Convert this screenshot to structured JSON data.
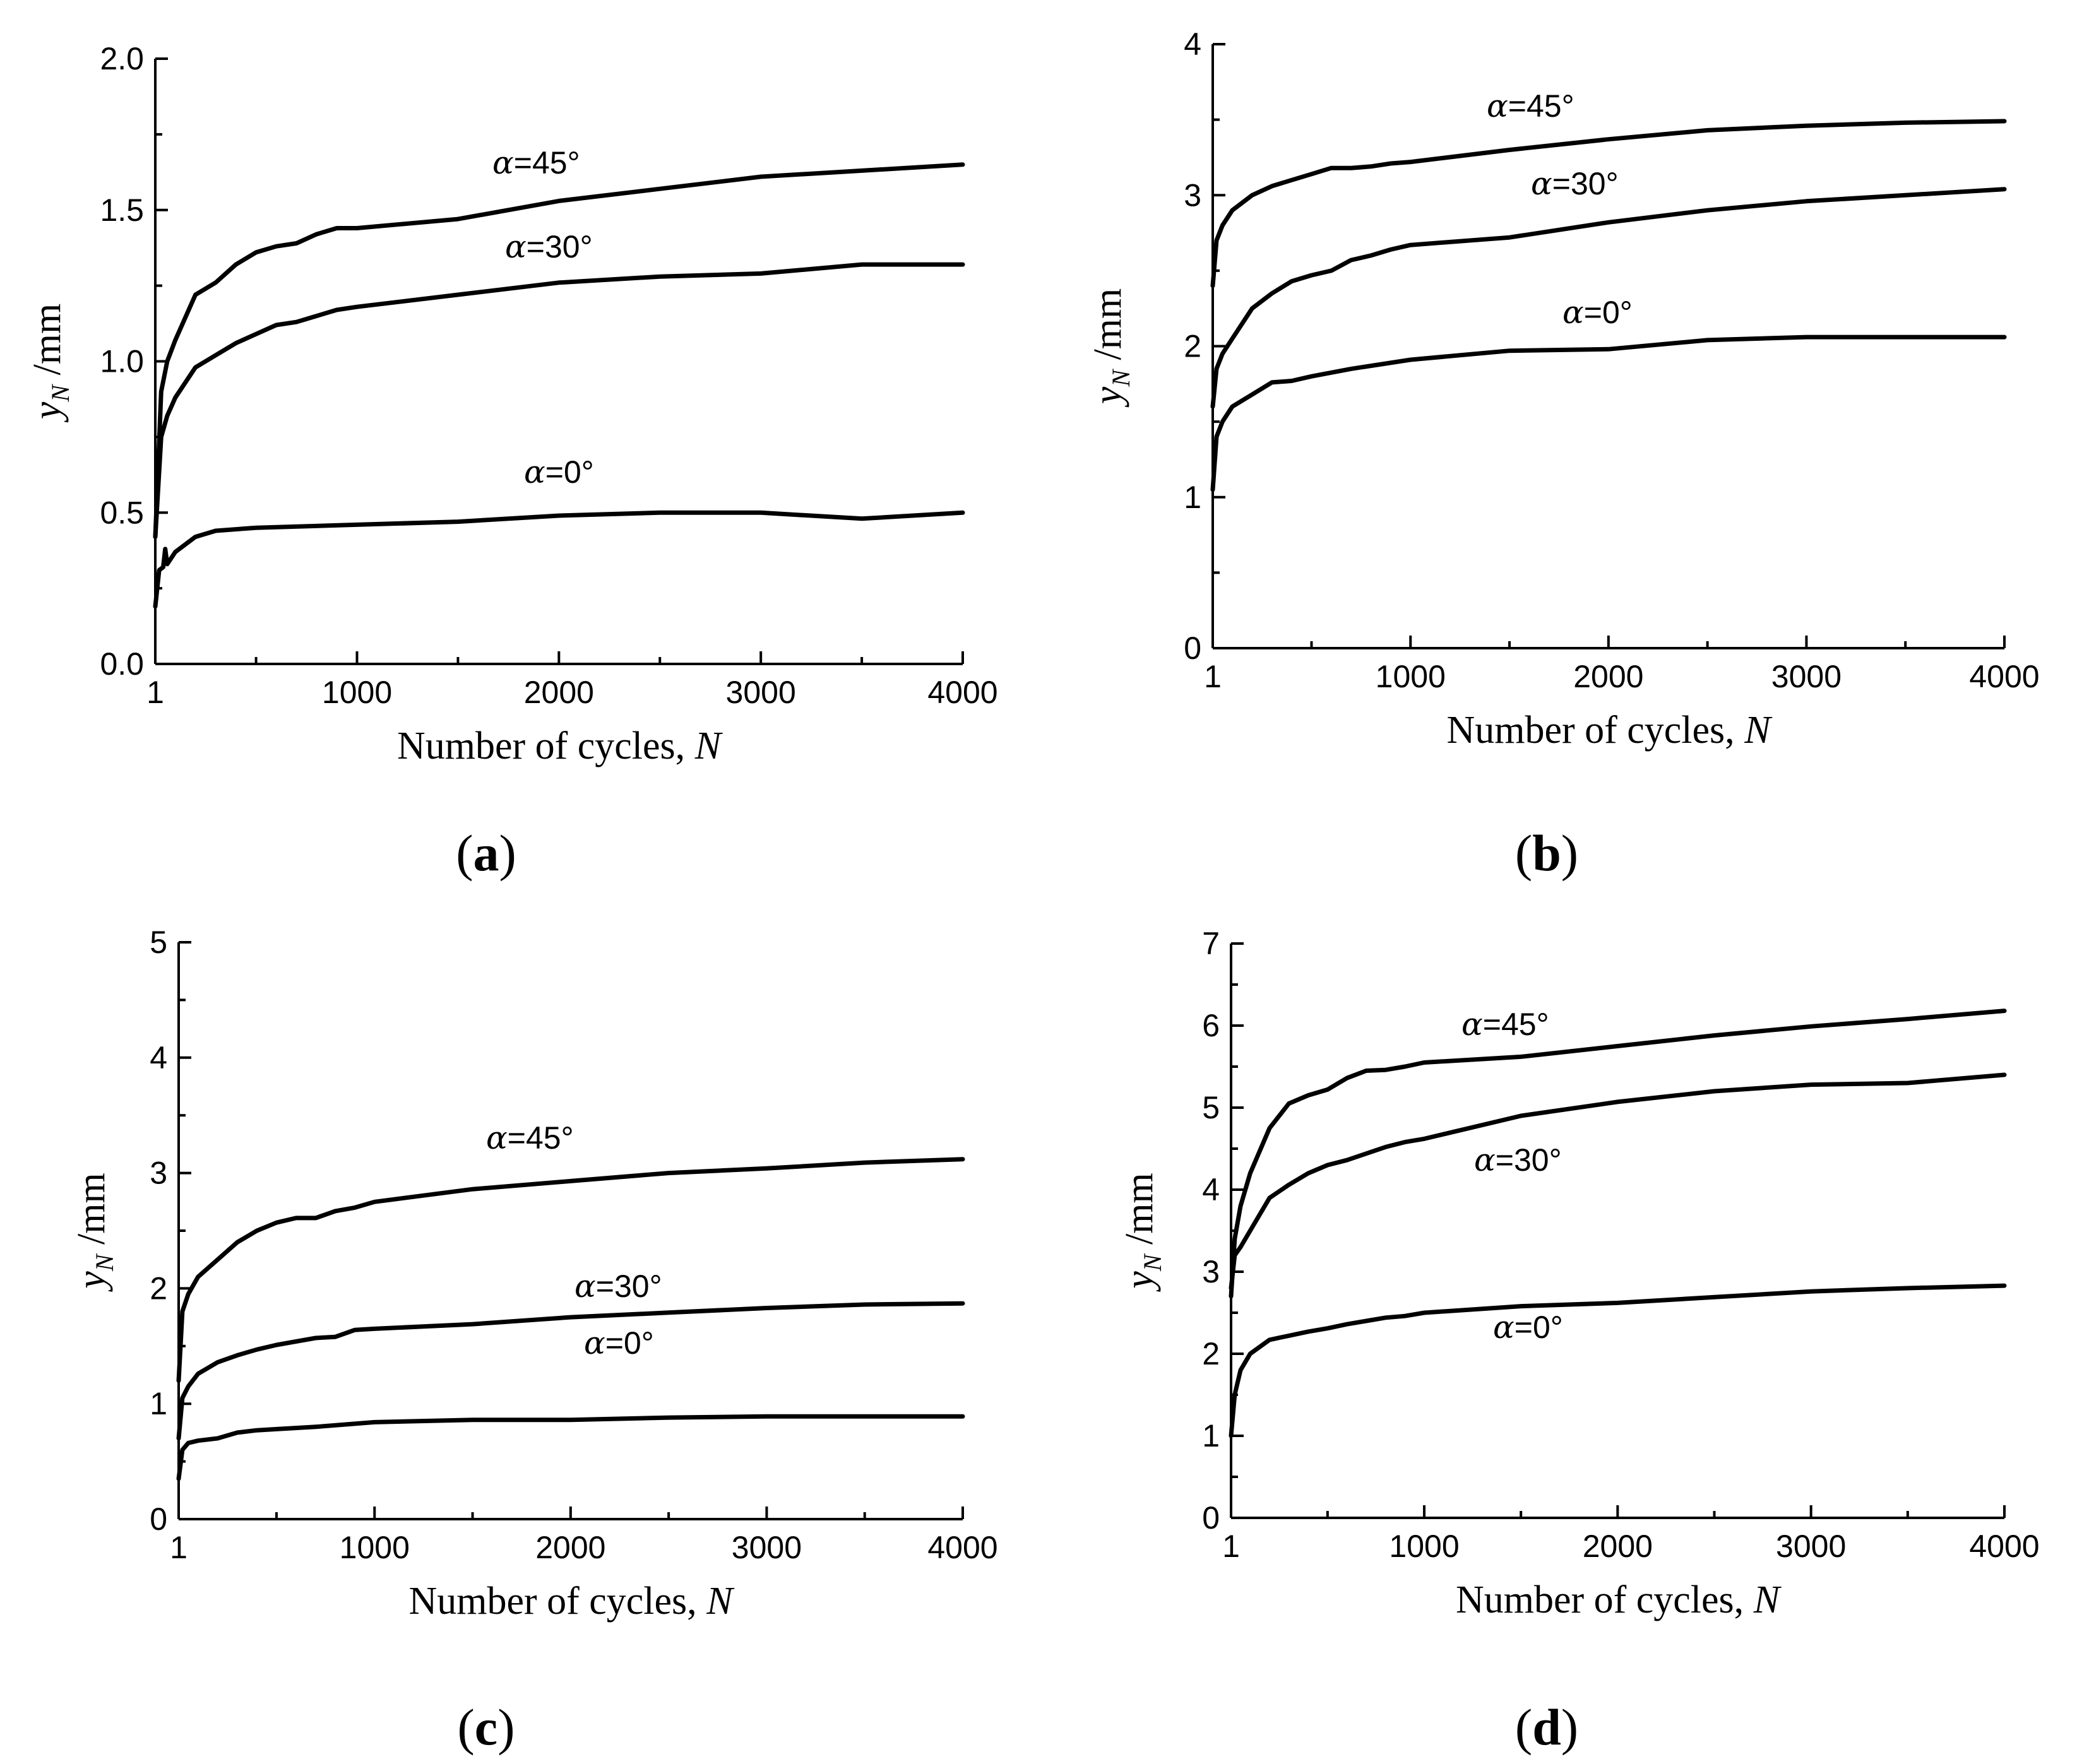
{
  "figure": {
    "background": "#ffffff",
    "line_color": "#000000"
  },
  "panels": [
    {
      "id": "a",
      "label": "a"
    },
    {
      "id": "b",
      "label": "b"
    },
    {
      "id": "c",
      "label": "c"
    },
    {
      "id": "d",
      "label": "d"
    }
  ],
  "chart_data": [
    {
      "type": "line",
      "panel": "a",
      "xlabel": "Number of cycles, N",
      "ylabel": "yN /mm",
      "xlim": [
        1,
        4000
      ],
      "ylim": [
        0,
        2.0
      ],
      "xticks": [
        1,
        1000,
        2000,
        3000,
        4000
      ],
      "xtick_labels": [
        "1",
        "1000",
        "2000",
        "3000",
        "4000"
      ],
      "yticks": [
        0,
        0.5,
        1.0,
        1.5,
        2.0
      ],
      "ytick_labels": [
        "0.0",
        "0.5",
        "1.0",
        "1.5",
        "2.0"
      ],
      "series": [
        {
          "name": "α=45°",
          "x": [
            1,
            30,
            60,
            100,
            200,
            300,
            400,
            500,
            600,
            700,
            800,
            900,
            1000,
            1500,
            2000,
            2500,
            3000,
            3500,
            4000
          ],
          "y": [
            0.42,
            0.9,
            1.0,
            1.07,
            1.22,
            1.26,
            1.32,
            1.36,
            1.38,
            1.39,
            1.42,
            1.44,
            1.44,
            1.47,
            1.53,
            1.57,
            1.61,
            1.63,
            1.65
          ]
        },
        {
          "name": "α=30°",
          "x": [
            1,
            30,
            60,
            100,
            200,
            300,
            400,
            500,
            600,
            700,
            800,
            900,
            1000,
            1500,
            2000,
            2500,
            3000,
            3500,
            4000
          ],
          "y": [
            0.42,
            0.75,
            0.82,
            0.88,
            0.98,
            1.02,
            1.06,
            1.09,
            1.12,
            1.13,
            1.15,
            1.17,
            1.18,
            1.22,
            1.26,
            1.28,
            1.29,
            1.32,
            1.32
          ]
        },
        {
          "name": "α=0°",
          "x": [
            1,
            20,
            40,
            50,
            60,
            100,
            200,
            300,
            500,
            1000,
            1500,
            2000,
            2500,
            3000,
            3500,
            4000
          ],
          "y": [
            0.19,
            0.31,
            0.32,
            0.38,
            0.33,
            0.37,
            0.42,
            0.44,
            0.45,
            0.46,
            0.47,
            0.49,
            0.5,
            0.5,
            0.48,
            0.5
          ]
        }
      ]
    },
    {
      "type": "line",
      "panel": "b",
      "xlabel": "Number of cycles, N",
      "ylabel": "yN /mm",
      "xlim": [
        1,
        4000
      ],
      "ylim": [
        0,
        4
      ],
      "xticks": [
        1,
        1000,
        2000,
        3000,
        4000
      ],
      "xtick_labels": [
        "1",
        "1000",
        "2000",
        "3000",
        "4000"
      ],
      "yticks": [
        0,
        1,
        2,
        3,
        4
      ],
      "ytick_labels": [
        "0",
        "1",
        "2",
        "3",
        "4"
      ],
      "series": [
        {
          "name": "α=45°",
          "x": [
            1,
            20,
            50,
            100,
            200,
            300,
            400,
            500,
            600,
            700,
            800,
            900,
            1000,
            1500,
            2000,
            2500,
            3000,
            3500,
            4000
          ],
          "y": [
            2.4,
            2.7,
            2.8,
            2.9,
            3.0,
            3.06,
            3.1,
            3.14,
            3.18,
            3.18,
            3.19,
            3.21,
            3.22,
            3.3,
            3.37,
            3.43,
            3.46,
            3.48,
            3.49
          ]
        },
        {
          "name": "α=30°",
          "x": [
            1,
            20,
            50,
            100,
            200,
            300,
            400,
            500,
            600,
            700,
            800,
            900,
            1000,
            1500,
            2000,
            2500,
            3000,
            3500,
            4000
          ],
          "y": [
            1.6,
            1.85,
            1.95,
            2.05,
            2.25,
            2.35,
            2.43,
            2.47,
            2.5,
            2.57,
            2.6,
            2.64,
            2.67,
            2.72,
            2.82,
            2.9,
            2.96,
            3.0,
            3.04
          ]
        },
        {
          "name": "α=0°",
          "x": [
            1,
            20,
            50,
            100,
            200,
            300,
            400,
            500,
            700,
            1000,
            1500,
            2000,
            2500,
            3000,
            3500,
            4000
          ],
          "y": [
            1.05,
            1.4,
            1.5,
            1.6,
            1.68,
            1.76,
            1.77,
            1.8,
            1.85,
            1.91,
            1.97,
            1.98,
            2.04,
            2.06,
            2.06,
            2.06
          ]
        }
      ]
    },
    {
      "type": "line",
      "panel": "c",
      "xlabel": "Number of cycles, N",
      "ylabel": "yN /mm",
      "xlim": [
        1,
        4000
      ],
      "ylim": [
        0,
        5
      ],
      "xticks": [
        1,
        1000,
        2000,
        3000,
        4000
      ],
      "xtick_labels": [
        "1",
        "1000",
        "2000",
        "3000",
        "4000"
      ],
      "yticks": [
        0,
        1,
        2,
        3,
        4,
        5
      ],
      "ytick_labels": [
        "0",
        "1",
        "2",
        "3",
        "4",
        "5"
      ],
      "series": [
        {
          "name": "α=45°",
          "x": [
            1,
            20,
            50,
            100,
            200,
            300,
            400,
            500,
            600,
            700,
            800,
            900,
            1000,
            1500,
            2000,
            2500,
            3000,
            3500,
            4000
          ],
          "y": [
            1.2,
            1.8,
            1.95,
            2.1,
            2.25,
            2.4,
            2.5,
            2.57,
            2.61,
            2.61,
            2.67,
            2.7,
            2.75,
            2.86,
            2.93,
            3.0,
            3.04,
            3.09,
            3.12
          ]
        },
        {
          "name": "α=30°",
          "x": [
            1,
            20,
            50,
            100,
            200,
            300,
            400,
            500,
            600,
            700,
            800,
            900,
            1000,
            1500,
            2000,
            2500,
            3000,
            3500,
            4000
          ],
          "y": [
            0.7,
            1.05,
            1.15,
            1.26,
            1.36,
            1.42,
            1.47,
            1.51,
            1.54,
            1.57,
            1.58,
            1.64,
            1.65,
            1.69,
            1.75,
            1.79,
            1.83,
            1.86,
            1.87
          ]
        },
        {
          "name": "α=0°",
          "x": [
            1,
            20,
            50,
            100,
            200,
            300,
            400,
            500,
            700,
            1000,
            1500,
            2000,
            2500,
            3000,
            3500,
            4000
          ],
          "y": [
            0.35,
            0.6,
            0.66,
            0.68,
            0.7,
            0.75,
            0.77,
            0.78,
            0.8,
            0.84,
            0.86,
            0.86,
            0.88,
            0.89,
            0.89,
            0.89
          ]
        }
      ]
    },
    {
      "type": "line",
      "panel": "d",
      "xlabel": "Number of cycles, N",
      "ylabel": "yN /mm",
      "xlim": [
        1,
        4000
      ],
      "ylim": [
        0,
        7
      ],
      "xticks": [
        1,
        1000,
        2000,
        3000,
        4000
      ],
      "xtick_labels": [
        "1",
        "1000",
        "2000",
        "3000",
        "4000"
      ],
      "yticks": [
        0,
        1,
        2,
        3,
        4,
        5,
        6,
        7
      ],
      "ytick_labels": [
        "0",
        "1",
        "2",
        "3",
        "4",
        "5",
        "6",
        "7"
      ],
      "series": [
        {
          "name": "α=45°",
          "x": [
            1,
            20,
            50,
            100,
            200,
            300,
            400,
            500,
            600,
            700,
            800,
            900,
            1000,
            1500,
            2000,
            2500,
            3000,
            3500,
            4000
          ],
          "y": [
            2.7,
            3.4,
            3.8,
            4.2,
            4.75,
            5.05,
            5.15,
            5.22,
            5.36,
            5.45,
            5.46,
            5.5,
            5.55,
            5.62,
            5.75,
            5.88,
            5.99,
            6.08,
            6.18
          ]
        },
        {
          "name": "α=30°",
          "x": [
            1,
            20,
            50,
            100,
            200,
            300,
            400,
            500,
            600,
            700,
            800,
            900,
            1000,
            1500,
            2000,
            2500,
            3000,
            3500,
            4000
          ],
          "y": [
            2.8,
            3.2,
            3.3,
            3.5,
            3.9,
            4.06,
            4.2,
            4.3,
            4.36,
            4.44,
            4.52,
            4.58,
            4.62,
            4.9,
            5.07,
            5.2,
            5.28,
            5.3,
            5.4
          ]
        },
        {
          "name": "α=0°",
          "x": [
            1,
            20,
            50,
            100,
            200,
            300,
            400,
            500,
            600,
            700,
            800,
            900,
            1000,
            1500,
            2000,
            2500,
            3000,
            3500,
            4000
          ],
          "y": [
            1.0,
            1.5,
            1.8,
            2.0,
            2.17,
            2.22,
            2.27,
            2.31,
            2.36,
            2.4,
            2.44,
            2.46,
            2.5,
            2.58,
            2.62,
            2.69,
            2.76,
            2.8,
            2.83
          ]
        }
      ]
    }
  ]
}
